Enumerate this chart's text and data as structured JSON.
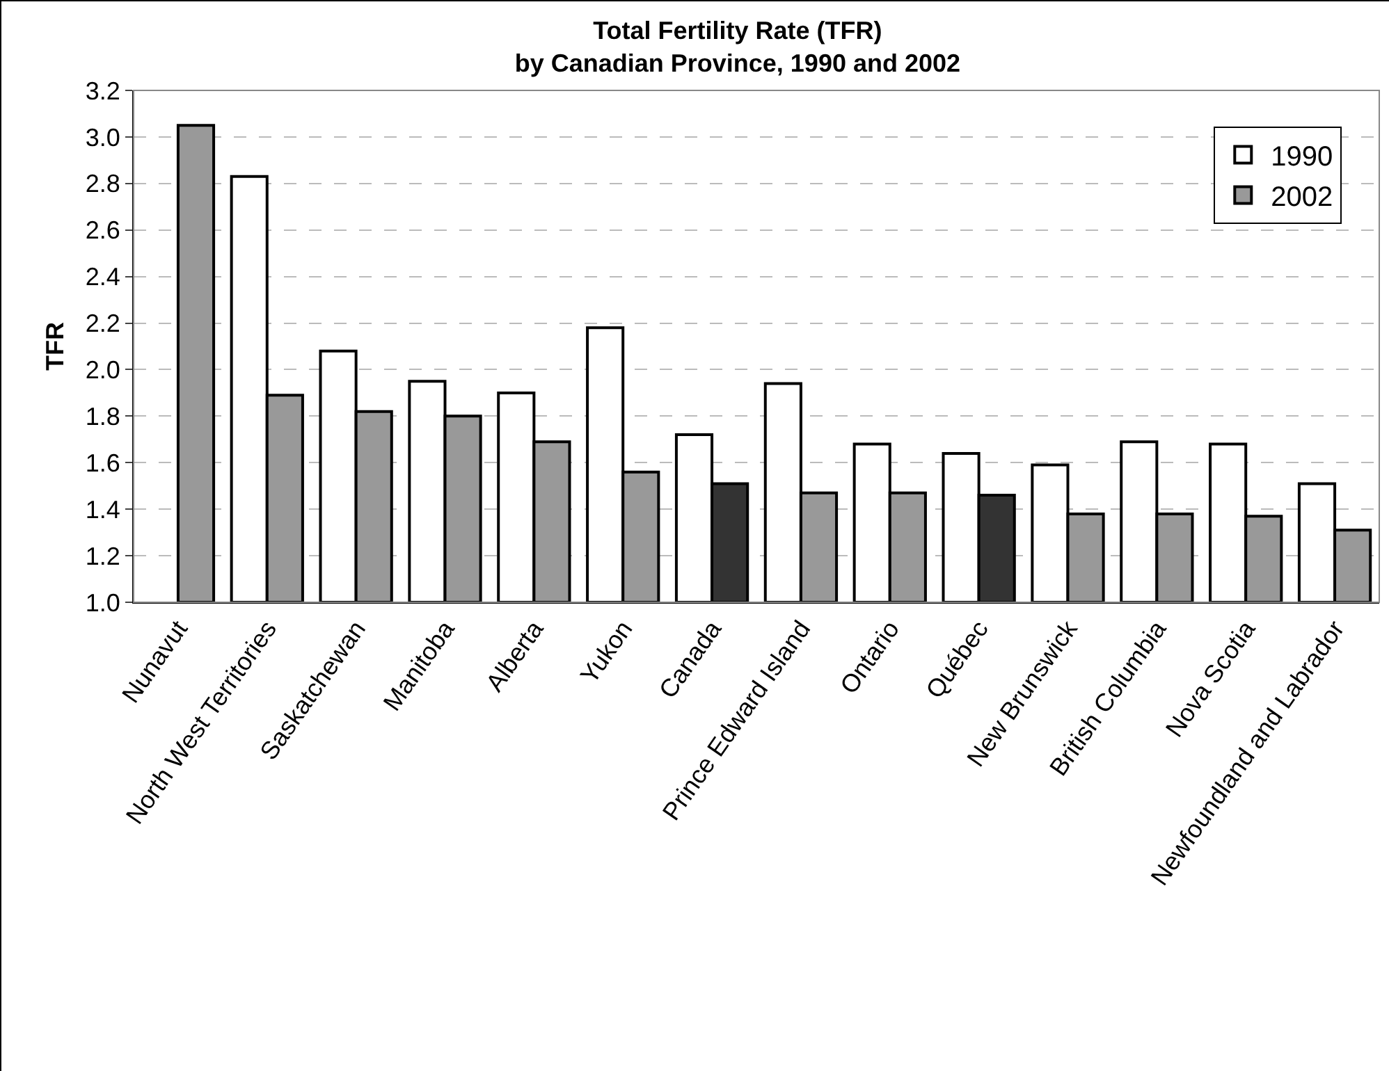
{
  "chart_data": {
    "type": "bar",
    "title": "Total Fertility Rate (TFR)\nby Canadian Province, 1990 and 2002",
    "ylabel": "TFR",
    "categories": [
      "Nunavut",
      "North West Territories",
      "Saskatchewan",
      "Manitoba",
      "Alberta",
      "Yukon",
      "Canada",
      "Prince Edward Island",
      "Ontario",
      "Québec",
      "New Brunswick",
      "British Columbia",
      "Nova Scotia",
      "Newfoundland and Labrador"
    ],
    "series": [
      {
        "name": "1990",
        "color": "#ffffff",
        "values": [
          null,
          2.83,
          2.08,
          1.95,
          1.9,
          2.18,
          1.72,
          1.94,
          1.68,
          1.64,
          1.59,
          1.69,
          1.68,
          1.51
        ]
      },
      {
        "name": "2002",
        "color": "#999999",
        "colors": [
          null,
          null,
          null,
          null,
          null,
          null,
          "#333333",
          null,
          null,
          "#333333",
          null,
          null,
          null,
          null
        ],
        "values": [
          3.05,
          1.89,
          1.82,
          1.8,
          1.69,
          1.56,
          1.51,
          1.47,
          1.47,
          1.46,
          1.38,
          1.38,
          1.37,
          1.31
        ]
      }
    ],
    "ylim": [
      1.0,
      3.2
    ],
    "yticks": [
      {
        "value": 1.0,
        "label": "1.0"
      },
      {
        "value": 1.2,
        "label": "1.2"
      },
      {
        "value": 1.4,
        "label": "1.4"
      },
      {
        "value": 1.6,
        "label": "1.6"
      },
      {
        "value": 1.8,
        "label": "1.8"
      },
      {
        "value": 2.0,
        "label": "2.0"
      },
      {
        "value": 2.2,
        "label": "2.2"
      },
      {
        "value": 2.4,
        "label": "2.4"
      },
      {
        "value": 2.6,
        "label": "2.6"
      },
      {
        "value": 2.8,
        "label": "2.8"
      },
      {
        "value": 3.0,
        "label": "3.0"
      },
      {
        "value": 3.2,
        "label": "3.2"
      }
    ],
    "grid": "y",
    "legend": "top right"
  }
}
